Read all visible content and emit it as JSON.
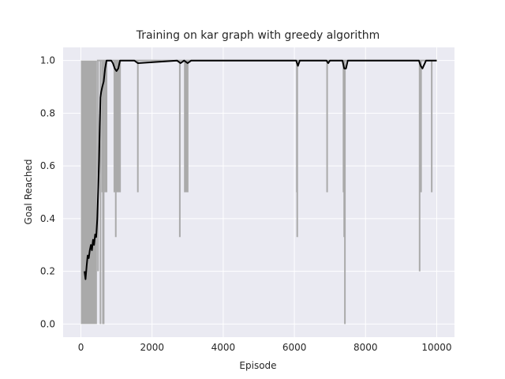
{
  "chart_data": {
    "type": "line",
    "title": "Training on kar graph with greedy algorithm",
    "xlabel": "Episode",
    "ylabel": "Goal Reached",
    "xlim": [
      -500,
      10500
    ],
    "ylim": [
      -0.05,
      1.05
    ],
    "x_ticks": [
      0,
      2000,
      4000,
      6000,
      8000,
      10000
    ],
    "y_ticks": [
      0.0,
      0.2,
      0.4,
      0.6,
      0.8,
      1.0
    ],
    "x_tick_labels": [
      "0",
      "2000",
      "4000",
      "6000",
      "8000",
      "10000"
    ],
    "y_tick_labels": [
      "0.0",
      "0.2",
      "0.4",
      "0.6",
      "0.8",
      "1.0"
    ],
    "grid": true,
    "background": "#eaeaf2",
    "series": [
      {
        "role": "raw",
        "color": "#aaaaaa",
        "baseline": 1.0,
        "dense_band": {
          "x_start": 0,
          "x_end": 450,
          "y_low": 0.0,
          "y_high": 1.0
        },
        "dips": [
          {
            "x": 480,
            "y": 0.2
          },
          {
            "x": 550,
            "y": 0.0
          },
          {
            "x": 600,
            "y": 0.5
          },
          {
            "x": 620,
            "y": 0.0
          },
          {
            "x": 640,
            "y": 0.0
          },
          {
            "x": 680,
            "y": 0.5
          },
          {
            "x": 720,
            "y": 0.5
          },
          {
            "x": 940,
            "y": 0.5
          },
          {
            "x": 980,
            "y": 0.33
          },
          {
            "x": 1000,
            "y": 0.5
          },
          {
            "x": 1020,
            "y": 0.5
          },
          {
            "x": 1040,
            "y": 0.5
          },
          {
            "x": 1060,
            "y": 0.5
          },
          {
            "x": 1100,
            "y": 0.5
          },
          {
            "x": 1600,
            "y": 0.5
          },
          {
            "x": 2780,
            "y": 0.33
          },
          {
            "x": 2920,
            "y": 0.5
          },
          {
            "x": 2960,
            "y": 0.5
          },
          {
            "x": 3000,
            "y": 0.5
          },
          {
            "x": 6070,
            "y": 0.5
          },
          {
            "x": 6080,
            "y": 0.33
          },
          {
            "x": 6920,
            "y": 0.5
          },
          {
            "x": 7380,
            "y": 0.5
          },
          {
            "x": 7400,
            "y": 0.33
          },
          {
            "x": 7420,
            "y": 0.0
          },
          {
            "x": 9520,
            "y": 0.2
          },
          {
            "x": 9560,
            "y": 0.5
          },
          {
            "x": 9860,
            "y": 0.5
          }
        ]
      },
      {
        "role": "smoothed",
        "color": "#000000",
        "x": [
          100,
          130,
          160,
          190,
          220,
          250,
          280,
          310,
          340,
          370,
          400,
          430,
          460,
          490,
          510,
          530,
          550,
          570,
          600,
          640,
          680,
          720,
          760,
          800,
          850,
          900,
          950,
          1000,
          1050,
          1100,
          1200,
          1500,
          1600,
          2700,
          2800,
          2900,
          3000,
          3100,
          3200,
          6000,
          6050,
          6100,
          6150,
          6900,
          6950,
          7000,
          7350,
          7400,
          7450,
          7500,
          9500,
          9550,
          9600,
          9700,
          9900,
          10000
        ],
        "y": [
          0.2,
          0.17,
          0.22,
          0.26,
          0.25,
          0.28,
          0.3,
          0.28,
          0.32,
          0.3,
          0.34,
          0.33,
          0.4,
          0.52,
          0.62,
          0.75,
          0.86,
          0.88,
          0.9,
          0.92,
          0.97,
          1.0,
          1.0,
          1.0,
          1.0,
          0.99,
          0.97,
          0.96,
          0.97,
          1.0,
          1.0,
          1.0,
          0.99,
          1.0,
          0.99,
          1.0,
          0.99,
          1.0,
          1.0,
          1.0,
          1.0,
          0.98,
          1.0,
          1.0,
          0.99,
          1.0,
          1.0,
          0.97,
          0.97,
          1.0,
          1.0,
          0.98,
          0.97,
          1.0,
          1.0,
          1.0
        ]
      }
    ]
  }
}
